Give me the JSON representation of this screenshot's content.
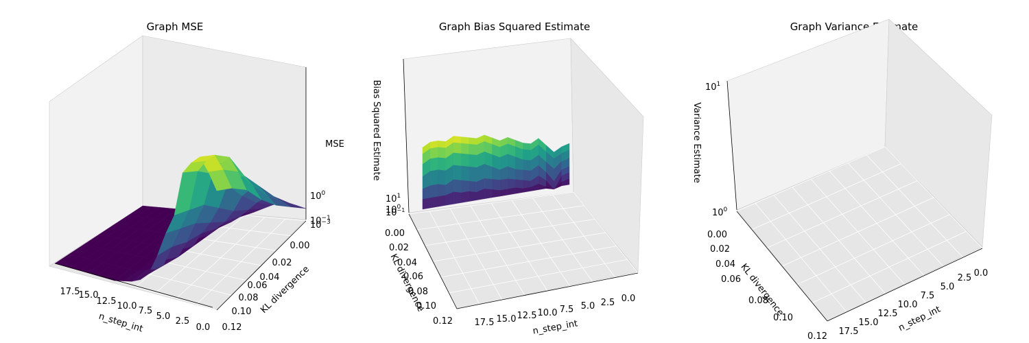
{
  "chart_data": [
    {
      "type": "surface",
      "title": "Graph MSE",
      "xlabel": "n_step_int",
      "ylabel": "KL divergence",
      "zlabel": "MSE",
      "zscale": "log",
      "x_ticks": [
        "17.5",
        "15.0",
        "12.5",
        "10.0",
        "7.5",
        "5.0",
        "2.5",
        "0.0"
      ],
      "y_ticks": [
        "0.00",
        "0.02",
        "0.04",
        "0.06",
        "0.08",
        "0.10",
        "0.12"
      ],
      "z_ticks": [
        "10^0",
        "10^-1",
        "10^-2",
        "10^-3"
      ],
      "colormap": "viridis",
      "rows": [
        {
          "kl": 0.12,
          "z": [
            2.9,
            3.3,
            3.6,
            3.4,
            3.1,
            2.0,
            1.5,
            0.9,
            0.4,
            0.2,
            0.1,
            0.05,
            0.0,
            0.0,
            0.0,
            0.0,
            0.0,
            0.0,
            0.0,
            0.0
          ]
        },
        {
          "kl": 0.1,
          "z": [
            2.6,
            3.0,
            3.3,
            3.1,
            2.8,
            1.8,
            1.3,
            0.8,
            0.3,
            0.15,
            0.08,
            0.0,
            0.0,
            0.0,
            0.0,
            0.0,
            0.0,
            0.0,
            0.0,
            0.0
          ]
        },
        {
          "kl": 0.08,
          "z": [
            2.2,
            2.6,
            2.9,
            2.7,
            2.4,
            1.6,
            1.1,
            0.6,
            0.2,
            0.1,
            0.0,
            0.0,
            0.0,
            0.0,
            0.0,
            0.0,
            0.0,
            0.0,
            0.0,
            0.0
          ]
        },
        {
          "kl": 0.06,
          "z": [
            1.6,
            1.9,
            2.1,
            2.0,
            1.8,
            1.2,
            0.8,
            0.5,
            0.15,
            0.05,
            0.0,
            0.0,
            0.0,
            0.0,
            0.0,
            0.0,
            0.0,
            0.0,
            0.0,
            0.0
          ]
        },
        {
          "kl": 0.04,
          "z": [
            1.1,
            1.3,
            1.5,
            1.4,
            1.2,
            0.8,
            0.5,
            0.3,
            0.1,
            0.0,
            0.0,
            0.0,
            0.0,
            0.0,
            0.0,
            0.0,
            0.0,
            0.0,
            0.0,
            0.0
          ]
        },
        {
          "kl": 0.02,
          "z": [
            0.7,
            0.8,
            0.9,
            0.85,
            0.7,
            0.5,
            0.3,
            0.15,
            0.05,
            0.0,
            0.0,
            0.0,
            0.0,
            0.0,
            0.0,
            0.0,
            0.0,
            0.0,
            0.0,
            0.0
          ]
        },
        {
          "kl": 0.0,
          "z": [
            0.3,
            0.35,
            0.4,
            0.38,
            0.3,
            0.2,
            0.1,
            0.05,
            0.0,
            0.0,
            0.0,
            0.0,
            0.0,
            0.0,
            0.0,
            0.0,
            0.0,
            0.0,
            0.0,
            0.0
          ]
        }
      ]
    },
    {
      "type": "surface",
      "title": "Graph Bias Squared Estimate",
      "xlabel": "n_step_int",
      "ylabel": "KL divergence",
      "zlabel": "Bias Squared Estimate",
      "zscale": "log",
      "x_ticks": [
        "17.5",
        "15.0",
        "12.5",
        "10.0",
        "7.5",
        "5.0",
        "2.5",
        "0.0"
      ],
      "y_ticks": [
        "0.00",
        "0.02",
        "0.04",
        "0.06",
        "0.08",
        "0.10",
        "0.12"
      ],
      "z_ticks": [
        "10^1",
        "10^0",
        "10^-1"
      ],
      "colormap": "viridis",
      "rows": [
        {
          "kl": 0.12,
          "z": [
            3.1,
            3.3,
            3.3,
            3.2,
            3.4,
            3.3,
            3.2,
            3.1,
            3.2,
            3.0,
            2.8,
            2.9,
            2.7,
            2.5,
            2.4,
            2.6,
            2.2,
            1.8,
            2.0,
            2.1
          ]
        },
        {
          "kl": 0.1,
          "z": [
            2.8,
            3.0,
            3.0,
            2.9,
            3.1,
            3.0,
            2.9,
            2.8,
            2.9,
            2.7,
            2.5,
            2.6,
            2.4,
            2.2,
            2.1,
            2.3,
            1.9,
            1.5,
            1.7,
            1.8
          ]
        },
        {
          "kl": 0.08,
          "z": [
            2.3,
            2.5,
            2.5,
            2.4,
            2.6,
            2.5,
            2.4,
            2.3,
            2.4,
            2.2,
            2.0,
            2.1,
            1.9,
            1.7,
            1.6,
            1.8,
            1.4,
            1.0,
            1.3,
            1.4
          ]
        },
        {
          "kl": 0.06,
          "z": [
            1.7,
            1.9,
            1.9,
            1.8,
            2.0,
            1.9,
            1.8,
            1.7,
            1.8,
            1.6,
            1.4,
            1.5,
            1.3,
            1.2,
            1.1,
            1.3,
            0.9,
            0.4,
            0.9,
            1.0
          ]
        },
        {
          "kl": 0.04,
          "z": [
            1.1,
            1.2,
            1.2,
            1.1,
            1.3,
            1.2,
            1.1,
            1.0,
            1.1,
            1.0,
            0.9,
            0.9,
            0.8,
            0.7,
            0.6,
            0.8,
            0.5,
            0.0,
            0.6,
            0.7
          ]
        },
        {
          "kl": 0.02,
          "z": [
            0.6,
            0.6,
            0.6,
            0.6,
            0.7,
            0.6,
            0.6,
            0.5,
            0.6,
            0.5,
            0.4,
            0.4,
            0.4,
            0.3,
            0.3,
            0.4,
            0.2,
            0.0,
            0.3,
            0.4
          ]
        },
        {
          "kl": 0.0,
          "z": [
            0.1,
            0.1,
            0.1,
            0.1,
            0.1,
            0.1,
            0.1,
            0.1,
            0.1,
            0.1,
            0.1,
            0.1,
            0.1,
            0.1,
            0.1,
            0.1,
            0.1,
            0.0,
            0.1,
            0.1
          ]
        }
      ]
    },
    {
      "type": "surface",
      "title": "Graph Variance Estimate",
      "xlabel": "n_step_int",
      "ylabel": "KL divergence",
      "zlabel": "Variance Estimate",
      "zscale": "log",
      "x_ticks": [
        "17.5",
        "15.0",
        "12.5",
        "10.0",
        "7.5",
        "5.0",
        "2.5",
        "0.0"
      ],
      "y_ticks": [
        "0.00",
        "0.02",
        "0.04",
        "0.06",
        "0.08",
        "0.10",
        "0.12"
      ],
      "z_ticks": [
        "10^1",
        "10^0"
      ],
      "rows": []
    }
  ]
}
